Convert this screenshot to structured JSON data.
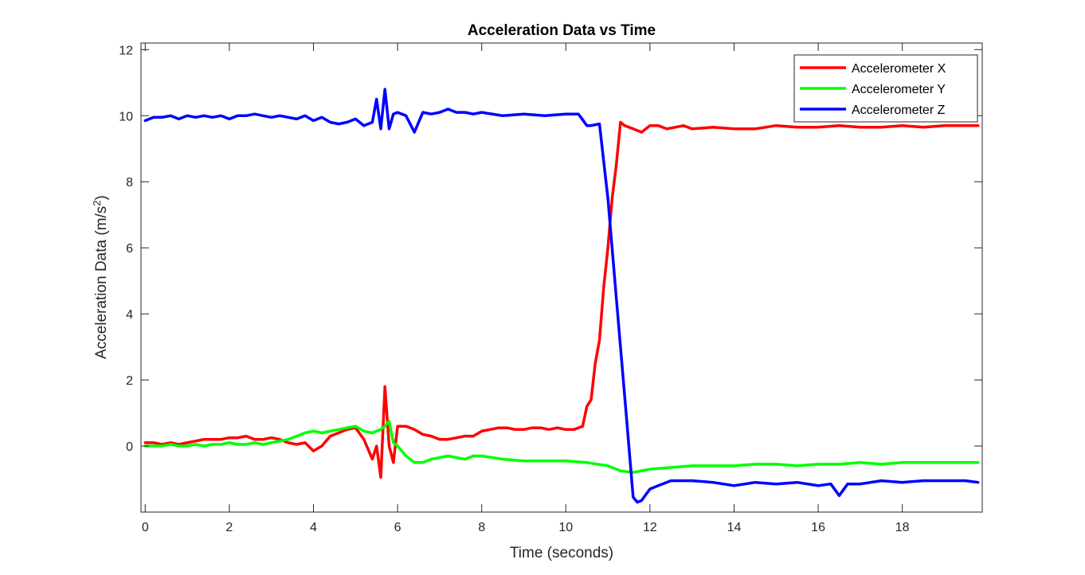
{
  "chart_data": {
    "type": "line",
    "title": "Acceleration Data vs Time",
    "xlabel": "Time (seconds)",
    "ylabel": "Acceleration Data (m/s²)",
    "ylabel_parts": {
      "base": "Acceleration Data (m/s",
      "sup": "2",
      "tail": ")"
    },
    "xlim": [
      -0.1,
      19.9
    ],
    "ylim": [
      -2,
      12.2
    ],
    "xticks": [
      0,
      2,
      4,
      6,
      8,
      10,
      12,
      14,
      16,
      18
    ],
    "yticks": [
      0,
      2,
      4,
      6,
      8,
      10,
      12
    ],
    "grid": false,
    "legend_position": "top-right",
    "series": [
      {
        "name": "Accelerometer X",
        "color": "#ff0000",
        "x": [
          0,
          0.2,
          0.4,
          0.6,
          0.8,
          1.0,
          1.2,
          1.4,
          1.6,
          1.8,
          2.0,
          2.2,
          2.4,
          2.6,
          2.8,
          3.0,
          3.2,
          3.4,
          3.6,
          3.8,
          4.0,
          4.2,
          4.4,
          4.6,
          4.8,
          5.0,
          5.2,
          5.4,
          5.5,
          5.6,
          5.7,
          5.8,
          5.9,
          6.0,
          6.2,
          6.4,
          6.6,
          6.8,
          7.0,
          7.2,
          7.4,
          7.6,
          7.8,
          8.0,
          8.2,
          8.4,
          8.6,
          8.8,
          9.0,
          9.2,
          9.4,
          9.6,
          9.8,
          10.0,
          10.2,
          10.4,
          10.5,
          10.6,
          10.7,
          10.8,
          10.9,
          11.0,
          11.1,
          11.2,
          11.3,
          11.4,
          11.6,
          11.8,
          12.0,
          12.2,
          12.4,
          12.6,
          12.8,
          13.0,
          13.5,
          14.0,
          14.5,
          15.0,
          15.5,
          16.0,
          16.5,
          17.0,
          17.5,
          18.0,
          18.5,
          19.0,
          19.5,
          19.8
        ],
        "y": [
          0.1,
          0.1,
          0.05,
          0.1,
          0.05,
          0.1,
          0.15,
          0.2,
          0.2,
          0.2,
          0.25,
          0.25,
          0.3,
          0.2,
          0.2,
          0.25,
          0.2,
          0.1,
          0.05,
          0.1,
          -0.15,
          0.0,
          0.3,
          0.4,
          0.5,
          0.55,
          0.2,
          -0.4,
          0.0,
          -0.95,
          1.8,
          0.0,
          -0.5,
          0.6,
          0.6,
          0.5,
          0.35,
          0.3,
          0.2,
          0.2,
          0.25,
          0.3,
          0.3,
          0.45,
          0.5,
          0.55,
          0.55,
          0.5,
          0.5,
          0.55,
          0.55,
          0.5,
          0.55,
          0.5,
          0.5,
          0.6,
          1.2,
          1.4,
          2.5,
          3.2,
          4.8,
          6.0,
          7.5,
          8.5,
          9.8,
          9.7,
          9.6,
          9.5,
          9.7,
          9.7,
          9.6,
          9.65,
          9.7,
          9.6,
          9.65,
          9.6,
          9.6,
          9.7,
          9.65,
          9.65,
          9.7,
          9.65,
          9.65,
          9.7,
          9.65,
          9.7,
          9.7,
          9.7
        ]
      },
      {
        "name": "Accelerometer Y",
        "color": "#00ff00",
        "x": [
          0,
          0.2,
          0.4,
          0.6,
          0.8,
          1.0,
          1.2,
          1.4,
          1.6,
          1.8,
          2.0,
          2.2,
          2.4,
          2.6,
          2.8,
          3.0,
          3.2,
          3.4,
          3.6,
          3.8,
          4.0,
          4.2,
          4.4,
          4.6,
          4.8,
          5.0,
          5.2,
          5.4,
          5.6,
          5.7,
          5.8,
          5.9,
          6.0,
          6.2,
          6.4,
          6.6,
          6.8,
          7.0,
          7.2,
          7.4,
          7.6,
          7.8,
          8.0,
          8.5,
          9.0,
          9.5,
          10.0,
          10.5,
          11.0,
          11.3,
          11.6,
          12.0,
          12.5,
          13.0,
          13.5,
          14.0,
          14.5,
          15.0,
          15.5,
          16.0,
          16.5,
          17.0,
          17.5,
          18.0,
          18.5,
          19.0,
          19.5,
          19.8
        ],
        "y": [
          0.0,
          0.0,
          0.0,
          0.05,
          0.0,
          0.0,
          0.05,
          0.0,
          0.05,
          0.05,
          0.1,
          0.05,
          0.05,
          0.1,
          0.05,
          0.1,
          0.15,
          0.2,
          0.3,
          0.4,
          0.45,
          0.4,
          0.45,
          0.5,
          0.55,
          0.6,
          0.45,
          0.4,
          0.5,
          0.6,
          0.75,
          0.1,
          0.0,
          -0.3,
          -0.5,
          -0.5,
          -0.4,
          -0.35,
          -0.3,
          -0.35,
          -0.4,
          -0.3,
          -0.3,
          -0.4,
          -0.45,
          -0.45,
          -0.45,
          -0.5,
          -0.6,
          -0.75,
          -0.8,
          -0.7,
          -0.65,
          -0.6,
          -0.6,
          -0.6,
          -0.55,
          -0.55,
          -0.6,
          -0.55,
          -0.55,
          -0.5,
          -0.55,
          -0.5,
          -0.5,
          -0.5,
          -0.5,
          -0.5
        ]
      },
      {
        "name": "Accelerometer Z",
        "color": "#0000ff",
        "x": [
          0,
          0.2,
          0.4,
          0.6,
          0.8,
          1.0,
          1.2,
          1.4,
          1.6,
          1.8,
          2.0,
          2.2,
          2.4,
          2.6,
          2.8,
          3.0,
          3.2,
          3.4,
          3.6,
          3.8,
          4.0,
          4.2,
          4.4,
          4.6,
          4.8,
          5.0,
          5.2,
          5.4,
          5.5,
          5.6,
          5.7,
          5.8,
          5.9,
          6.0,
          6.2,
          6.4,
          6.6,
          6.8,
          7.0,
          7.2,
          7.4,
          7.6,
          7.8,
          8.0,
          8.5,
          9.0,
          9.5,
          10.0,
          10.3,
          10.5,
          10.6,
          10.8,
          11.0,
          11.2,
          11.4,
          11.6,
          11.7,
          11.8,
          12.0,
          12.2,
          12.5,
          13.0,
          13.5,
          14.0,
          14.5,
          15.0,
          15.5,
          16.0,
          16.3,
          16.5,
          16.7,
          17.0,
          17.5,
          18.0,
          18.5,
          19.0,
          19.5,
          19.8
        ],
        "y": [
          9.85,
          9.95,
          9.95,
          10.0,
          9.9,
          10.0,
          9.95,
          10.0,
          9.95,
          10.0,
          9.9,
          10.0,
          10.0,
          10.05,
          10.0,
          9.95,
          10.0,
          9.95,
          9.9,
          10.0,
          9.85,
          9.95,
          9.8,
          9.75,
          9.8,
          9.9,
          9.7,
          9.8,
          10.5,
          9.6,
          10.8,
          9.6,
          10.05,
          10.1,
          10.0,
          9.5,
          10.1,
          10.05,
          10.1,
          10.2,
          10.1,
          10.1,
          10.05,
          10.1,
          10.0,
          10.05,
          10.0,
          10.05,
          10.05,
          9.7,
          9.7,
          9.75,
          7.5,
          4.5,
          1.5,
          -1.55,
          -1.7,
          -1.65,
          -1.3,
          -1.2,
          -1.05,
          -1.05,
          -1.1,
          -1.2,
          -1.1,
          -1.15,
          -1.1,
          -1.2,
          -1.15,
          -1.5,
          -1.15,
          -1.15,
          -1.05,
          -1.1,
          -1.05,
          -1.05,
          -1.05,
          -1.1
        ]
      }
    ]
  }
}
